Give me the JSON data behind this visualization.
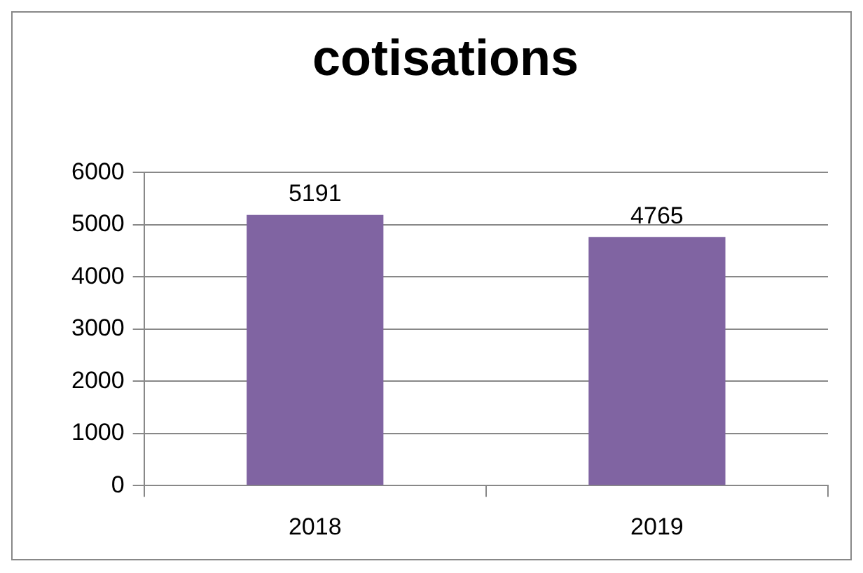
{
  "chart_data": {
    "type": "bar",
    "title": "cotisations",
    "categories": [
      "2018",
      "2019"
    ],
    "values": [
      5191,
      4765
    ],
    "color": "#8064a2",
    "ylim": [
      0,
      6000
    ],
    "yticks": [
      0,
      1000,
      2000,
      3000,
      4000,
      5000,
      6000
    ],
    "grid": "y",
    "data_labels": true,
    "legend": false
  }
}
